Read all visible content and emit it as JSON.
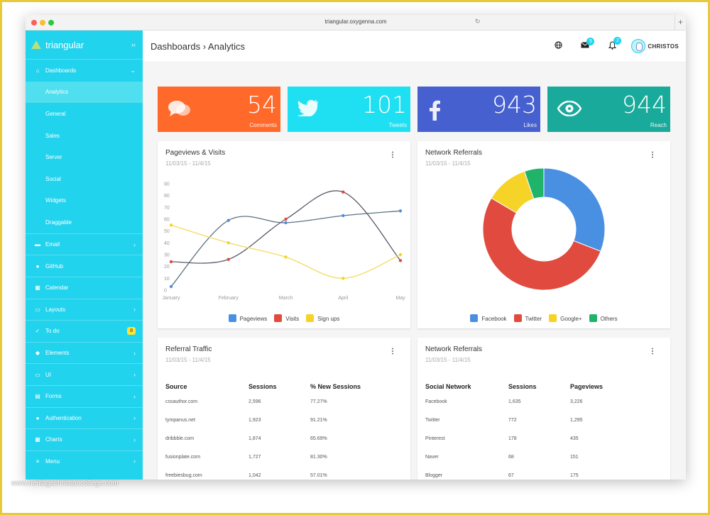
{
  "browser": {
    "url": "triangular.oxygenna.com"
  },
  "sidebar": {
    "brand": "triangular",
    "items": [
      {
        "icon": "home-icon",
        "label": "Dashboards",
        "chevron": "⌄"
      },
      {
        "label": "Analytics"
      },
      {
        "label": "General"
      },
      {
        "label": "Sales"
      },
      {
        "label": "Server"
      },
      {
        "label": "Social"
      },
      {
        "label": "Widgets"
      },
      {
        "label": "Draggable"
      },
      {
        "icon": "email-icon",
        "label": "Email",
        "chevron": "›"
      },
      {
        "icon": "github-icon",
        "label": "GitHub"
      },
      {
        "icon": "calendar-icon",
        "label": "Calendar"
      },
      {
        "icon": "layouts-icon",
        "label": "Layouts",
        "chevron": "›"
      },
      {
        "icon": "todo-icon",
        "label": "To do",
        "badge": "8"
      },
      {
        "icon": "elements-icon",
        "label": "Elements",
        "chevron": "›"
      },
      {
        "icon": "ui-icon",
        "label": "UI",
        "chevron": "›"
      },
      {
        "icon": "forms-icon",
        "label": "Forms",
        "chevron": "›"
      },
      {
        "icon": "user-icon",
        "label": "Authentication",
        "chevron": "›"
      },
      {
        "icon": "charts-icon",
        "label": "Charts",
        "chevron": "›"
      },
      {
        "icon": "menu-icon",
        "label": "Menu",
        "chevron": "›"
      }
    ]
  },
  "header": {
    "breadcrumb": "Dashboards › Analytics",
    "mail_badge": "5",
    "bell_badge": "2",
    "user": "CHRISTOS"
  },
  "stats": [
    {
      "value": "54",
      "label": "Comments",
      "color": "#ff6a2b",
      "icon": "comments-icon"
    },
    {
      "value": "101",
      "label": "Tweets",
      "color": "#1fe0f2",
      "icon": "twitter-icon"
    },
    {
      "value": "943",
      "label": "Likes",
      "color": "#4760cf",
      "icon": "facebook-icon"
    },
    {
      "value": "944",
      "label": "Reach",
      "color": "#1aaa9b",
      "icon": "eye-icon"
    }
  ],
  "line_card": {
    "title": "Pageviews & Visits",
    "date": "11/03/15 - 11/4/15"
  },
  "donut_card": {
    "title": "Network Referrals",
    "date": "11/03/15 - 11/4/15"
  },
  "referral_card": {
    "title": "Referral Traffic",
    "date": "11/03/15 - 11/4/15",
    "headers": [
      "Source",
      "Sessions",
      "% New Sessions"
    ],
    "rows": [
      [
        "cssauthor.com",
        "2,596",
        "77.27%"
      ],
      [
        "tympanus.net",
        "1,923",
        "91.21%"
      ],
      [
        "dribbble.com",
        "1,874",
        "65.69%"
      ],
      [
        "fusionplate.com",
        "1,727",
        "81.30%"
      ],
      [
        "freebiesbug.com",
        "1,042",
        "57.01%"
      ]
    ]
  },
  "network_card": {
    "title": "Network Referrals",
    "date": "11/03/15 - 11/4/15",
    "headers": [
      "Social Network",
      "Sessions",
      "Pageviews"
    ],
    "rows": [
      [
        "Facebook",
        "1,635",
        "3,226"
      ],
      [
        "Twitter",
        "772",
        "1,295"
      ],
      [
        "Pinterest",
        "178",
        "435"
      ],
      [
        "Naver",
        "68",
        "151"
      ],
      [
        "Blogger",
        "67",
        "175"
      ]
    ]
  },
  "watermark": "www.heritagechristiancollege.com",
  "chart_data": [
    {
      "type": "line",
      "title": "Pageviews & Visits",
      "categories": [
        "January",
        "February",
        "March",
        "April",
        "May"
      ],
      "ylim": [
        0,
        90
      ],
      "yticks": [
        0,
        10,
        20,
        30,
        40,
        50,
        60,
        70,
        80,
        90
      ],
      "series": [
        {
          "name": "Pageviews",
          "color": "#4a90e2",
          "values": [
            3,
            59,
            57,
            63,
            67
          ]
        },
        {
          "name": "Visits",
          "color": "#e04a3f",
          "values": [
            24,
            26,
            60,
            83,
            25
          ]
        },
        {
          "name": "Sign ups",
          "color": "#f5d327",
          "values": [
            55,
            40,
            28,
            10,
            30
          ]
        }
      ],
      "grid": false,
      "legend": "bottom"
    },
    {
      "type": "pie",
      "title": "Network Referrals",
      "donut": true,
      "series": [
        {
          "name": "Facebook",
          "value": 30,
          "color": "#4a90e2"
        },
        {
          "name": "Twitter",
          "value": 51,
          "color": "#e04a3f"
        },
        {
          "name": "Google+",
          "value": 11,
          "color": "#f5d327"
        },
        {
          "name": "Others",
          "value": 5,
          "color": "#1fb46a"
        }
      ],
      "legend": "bottom"
    }
  ]
}
